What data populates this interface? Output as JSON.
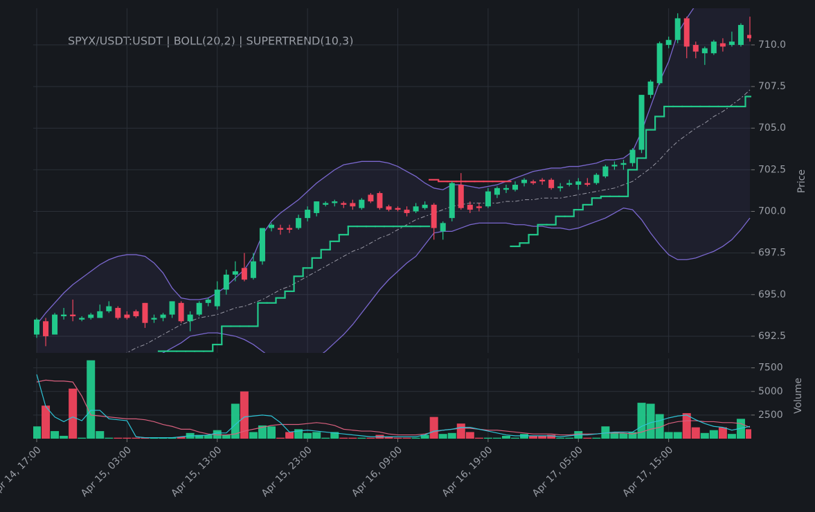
{
  "chart_data": {
    "type": "candlestick",
    "title": "SPYX/USDT:USDT | BOLL(20,2) | SUPERTREND(10,3)",
    "y_label": "Price",
    "volume_label": "Volume",
    "categories": [
      "Apr 14, 17:00",
      null,
      null,
      null,
      null,
      null,
      null,
      null,
      null,
      null,
      "Apr 15, 03:00",
      null,
      null,
      null,
      null,
      null,
      null,
      null,
      null,
      null,
      "Apr 15, 13:00",
      null,
      null,
      null,
      null,
      null,
      null,
      null,
      null,
      null,
      "Apr 15, 23:00",
      null,
      null,
      null,
      null,
      null,
      null,
      null,
      null,
      null,
      "Apr 16, 09:00",
      null,
      null,
      null,
      null,
      null,
      null,
      null,
      null,
      null,
      "Apr 16, 19:00",
      null,
      null,
      null,
      null,
      null,
      null,
      null,
      null,
      null,
      "Apr 17, 05:00",
      null,
      null,
      null,
      null,
      null,
      null,
      null,
      null,
      null,
      "Apr 17, 15:00",
      null,
      null,
      null,
      null,
      null,
      null,
      null,
      null,
      null
    ],
    "open": [
      692.6,
      693.4,
      692.6,
      693.7,
      693.8,
      693.5,
      693.6,
      693.6,
      694.0,
      694.2,
      693.8,
      694.0,
      694.5,
      693.5,
      693.6,
      693.8,
      694.5,
      693.4,
      693.8,
      694.5,
      694.3,
      695.3,
      696.2,
      696.6,
      696.0,
      697.0,
      699.0,
      699.0,
      699.0,
      699.0,
      699.6,
      699.9,
      700.4,
      700.5,
      700.5,
      700.5,
      700.2,
      701.0,
      701.1,
      700.3,
      700.2,
      700.1,
      700.0,
      700.2,
      700.4,
      698.8,
      699.6,
      701.6,
      700.4,
      700.3,
      700.3,
      701.0,
      701.3,
      701.3,
      701.7,
      701.8,
      701.9,
      701.9,
      701.4,
      701.6,
      701.6,
      701.7,
      701.7,
      702.1,
      702.7,
      702.8,
      702.9,
      703.7,
      707.0,
      707.7,
      710.0,
      710.3,
      711.6,
      710.0,
      709.5,
      709.5,
      710.1,
      710.0,
      710.0,
      710.6
    ],
    "high": [
      693.6,
      693.6,
      693.9,
      694.2,
      694.7,
      693.7,
      693.9,
      694.4,
      694.6,
      694.3,
      694.0,
      694.1,
      694.5,
      693.8,
      693.9,
      694.6,
      694.6,
      694.0,
      694.6,
      694.8,
      695.8,
      696.5,
      697.0,
      697.5,
      697.5,
      699.0,
      699.3,
      699.2,
      699.2,
      699.8,
      700.3,
      700.6,
      700.6,
      700.7,
      700.6,
      700.7,
      700.8,
      701.1,
      701.2,
      700.4,
      700.3,
      700.3,
      700.5,
      700.6,
      700.5,
      699.4,
      701.8,
      702.3,
      700.6,
      700.5,
      701.4,
      701.5,
      701.6,
      701.8,
      702.0,
      701.9,
      702.0,
      702.0,
      701.7,
      701.9,
      702.0,
      702.0,
      702.3,
      702.8,
      703.0,
      703.1,
      703.8,
      707.0,
      707.9,
      710.2,
      710.5,
      711.9,
      711.7,
      710.2,
      709.9,
      710.3,
      710.4,
      710.8,
      711.3,
      711.7
    ],
    "low": [
      692.4,
      691.9,
      692.6,
      693.5,
      693.4,
      693.4,
      693.5,
      693.6,
      693.9,
      693.5,
      693.5,
      693.6,
      693.0,
      693.3,
      693.4,
      693.6,
      693.3,
      692.8,
      693.7,
      694.3,
      694.1,
      695.0,
      695.8,
      695.8,
      695.9,
      696.8,
      698.8,
      698.6,
      698.7,
      698.9,
      699.4,
      699.7,
      700.3,
      700.3,
      700.2,
      700.1,
      700.1,
      700.5,
      700.1,
      700.0,
      700.0,
      699.7,
      699.9,
      700.1,
      698.3,
      698.3,
      699.4,
      700.1,
      699.9,
      700.0,
      700.2,
      700.8,
      701.1,
      701.2,
      701.5,
      701.6,
      701.6,
      701.3,
      701.2,
      701.5,
      701.3,
      701.5,
      701.6,
      702.0,
      702.5,
      702.5,
      702.7,
      703.5,
      706.8,
      707.6,
      709.8,
      710.1,
      709.2,
      709.2,
      708.8,
      709.4,
      709.6,
      709.9,
      709.9,
      710.2
    ],
    "close": [
      693.5,
      692.5,
      693.8,
      693.8,
      693.7,
      693.6,
      693.8,
      694.0,
      694.3,
      693.6,
      693.6,
      693.7,
      693.3,
      693.6,
      693.8,
      694.6,
      693.4,
      693.8,
      694.5,
      694.7,
      695.3,
      696.2,
      696.4,
      695.9,
      697.0,
      699.0,
      699.2,
      698.9,
      698.9,
      699.6,
      700.1,
      700.6,
      700.5,
      700.6,
      700.4,
      700.3,
      700.7,
      700.6,
      700.2,
      700.1,
      700.1,
      699.9,
      700.3,
      700.4,
      699.0,
      699.3,
      701.7,
      700.2,
      700.1,
      700.2,
      701.2,
      701.4,
      701.4,
      701.6,
      701.9,
      701.7,
      701.8,
      701.4,
      701.5,
      701.7,
      701.8,
      701.6,
      702.2,
      702.7,
      702.8,
      702.9,
      703.7,
      707.0,
      707.8,
      710.1,
      710.3,
      711.6,
      709.9,
      709.6,
      709.8,
      710.2,
      709.9,
      710.2,
      711.2,
      710.4
    ],
    "volume": [
      1300,
      3500,
      800,
      300,
      5300,
      100,
      8300,
      800,
      100,
      100,
      100,
      100,
      100,
      100,
      100,
      100,
      200,
      600,
      400,
      400,
      900,
      400,
      3700,
      5000,
      700,
      1400,
      1300,
      100,
      700,
      1000,
      600,
      700,
      100,
      700,
      100,
      100,
      100,
      100,
      400,
      200,
      100,
      100,
      100,
      400,
      2300,
      500,
      600,
      1600,
      700,
      100,
      100,
      100,
      300,
      100,
      500,
      300,
      300,
      400,
      100,
      100,
      800,
      100,
      100,
      1300,
      700,
      600,
      700,
      3800,
      3700,
      2600,
      700,
      700,
      2700,
      1200,
      600,
      900,
      1200,
      500,
      2100,
      1000
    ],
    "up_color": "#22c98b",
    "down_color": "#f0455d",
    "bollinger": {
      "color": "#7b68d0",
      "mid_color": "#9a9aa6",
      "upper": [
        693.2,
        693.9,
        694.5,
        695.1,
        695.6,
        696.0,
        696.4,
        696.8,
        697.1,
        697.3,
        697.4,
        697.4,
        697.3,
        696.9,
        696.3,
        695.4,
        694.8,
        694.7,
        694.7,
        694.8,
        695.1,
        695.5,
        696.0,
        696.5,
        697.3,
        698.6,
        699.4,
        699.9,
        700.3,
        700.7,
        701.2,
        701.7,
        702.1,
        702.5,
        702.8,
        702.9,
        703.0,
        703.0,
        703.0,
        702.9,
        702.7,
        702.4,
        702.1,
        701.7,
        701.4,
        701.3,
        701.6,
        701.6,
        701.5,
        701.4,
        701.5,
        701.6,
        701.8,
        702.0,
        702.2,
        702.4,
        702.5,
        702.6,
        702.6,
        702.7,
        702.7,
        702.8,
        702.9,
        703.1,
        703.1,
        703.2,
        703.6,
        704.8,
        706.3,
        707.8,
        709.0,
        710.7,
        711.6,
        712.4,
        713.0,
        713.5,
        713.8,
        714.0,
        714.2,
        714.4
      ],
      "mid": [
        691.0,
        690.9,
        690.9,
        690.9,
        691.0,
        691.0,
        691.0,
        691.1,
        691.2,
        691.3,
        691.5,
        691.8,
        692.0,
        692.3,
        692.6,
        692.9,
        693.2,
        693.4,
        693.6,
        693.7,
        693.8,
        694.0,
        694.2,
        694.3,
        694.5,
        694.7,
        695.0,
        695.3,
        695.5,
        695.8,
        696.1,
        696.4,
        696.7,
        697.0,
        697.3,
        697.6,
        697.8,
        698.1,
        698.4,
        698.6,
        698.9,
        699.2,
        699.5,
        699.7,
        699.9,
        700.1,
        700.3,
        700.4,
        700.5,
        700.5,
        700.5,
        700.5,
        700.6,
        700.6,
        700.7,
        700.7,
        700.8,
        700.8,
        700.8,
        700.9,
        701.0,
        701.1,
        701.2,
        701.3,
        701.4,
        701.6,
        701.8,
        702.2,
        702.6,
        703.1,
        703.7,
        704.2,
        704.6,
        705.0,
        705.3,
        705.7,
        706.0,
        706.4,
        706.8,
        707.3
      ],
      "lower": [
        690.5,
        690.0,
        689.6,
        689.3,
        689.1,
        689.0,
        689.0,
        689.1,
        689.3,
        689.6,
        689.9,
        690.3,
        690.8,
        691.2,
        691.5,
        691.8,
        692.1,
        692.5,
        692.6,
        692.7,
        692.7,
        692.6,
        692.5,
        692.3,
        692.0,
        691.6,
        691.2,
        691.0,
        690.9,
        690.9,
        691.0,
        691.2,
        691.6,
        692.1,
        692.6,
        693.2,
        693.9,
        694.6,
        695.3,
        695.9,
        696.4,
        696.9,
        697.3,
        698.0,
        698.7,
        698.8,
        698.8,
        699.0,
        699.2,
        699.3,
        699.3,
        699.3,
        699.3,
        699.2,
        699.2,
        699.1,
        699.1,
        699.0,
        699.0,
        698.9,
        699.0,
        699.2,
        699.4,
        699.6,
        699.9,
        700.2,
        700.1,
        699.5,
        698.7,
        698.0,
        697.4,
        697.1,
        697.1,
        697.2,
        697.4,
        697.6,
        697.9,
        698.3,
        698.9,
        699.6
      ]
    },
    "supertrend": [
      {
        "color": "#22c98b",
        "values": [
          null,
          null,
          null,
          null,
          null,
          null,
          null,
          null,
          null,
          null,
          null,
          null,
          null,
          null,
          691.6,
          691.6,
          691.6,
          691.6,
          691.6,
          691.6,
          692.0,
          693.1,
          693.1,
          693.1,
          693.1,
          694.5,
          694.5,
          694.8,
          695.2,
          696.1,
          696.6,
          697.2,
          697.7,
          698.2,
          698.6,
          699.1,
          699.1,
          699.1,
          699.1,
          699.1,
          699.1,
          699.1,
          699.1,
          699.1,
          null,
          null,
          null,
          null,
          null,
          null,
          null,
          null,
          null,
          697.9,
          698.1,
          698.6,
          699.2,
          699.2,
          699.7,
          699.7,
          700.1,
          700.4,
          700.8,
          700.9,
          700.9,
          700.9,
          702.5,
          703.2,
          704.9,
          705.7,
          706.3,
          706.3,
          706.3,
          706.3,
          706.3,
          706.3,
          706.3,
          706.3,
          706.3,
          706.9
        ]
      },
      {
        "color": "#f0455d",
        "values": [
          null,
          null,
          null,
          null,
          null,
          null,
          null,
          null,
          null,
          null,
          null,
          null,
          null,
          null,
          null,
          null,
          null,
          null,
          null,
          null,
          null,
          null,
          null,
          null,
          null,
          null,
          null,
          null,
          null,
          null,
          null,
          null,
          null,
          null,
          null,
          null,
          null,
          null,
          null,
          null,
          null,
          null,
          null,
          null,
          701.9,
          701.8,
          701.8,
          701.8,
          701.8,
          701.8,
          701.8,
          701.8,
          701.8,
          null,
          null,
          null,
          null,
          null,
          null,
          null,
          null,
          null,
          null,
          null,
          null,
          null,
          null,
          null,
          null,
          null,
          null,
          null,
          null,
          null,
          null,
          null,
          null,
          null,
          null,
          null
        ]
      }
    ],
    "volume_ma": [
      {
        "color": "#d9607e",
        "values": [
          6000,
          6200,
          6100,
          6100,
          6000,
          4500,
          2500,
          2400,
          2300,
          2200,
          2100,
          2100,
          2000,
          1800,
          1500,
          1300,
          1000,
          1000,
          700,
          500,
          400,
          400,
          500,
          800,
          1000,
          1200,
          1400,
          1500,
          1500,
          1500,
          1600,
          1700,
          1600,
          1400,
          1000,
          900,
          800,
          800,
          700,
          500,
          400,
          400,
          400,
          500,
          700,
          900,
          1000,
          1100,
          1100,
          1000,
          900,
          900,
          800,
          700,
          600,
          500,
          500,
          500,
          400,
          400,
          500,
          500,
          500,
          600,
          600,
          600,
          500,
          700,
          1000,
          1200,
          1600,
          1800,
          1900,
          1900,
          1800,
          1800,
          1700,
          1700,
          1600,
          1200
        ]
      },
      {
        "color": "#2ec4d6",
        "values": [
          6800,
          3400,
          2300,
          1800,
          2300,
          1900,
          3000,
          3000,
          2100,
          2000,
          1900,
          200,
          100,
          100,
          100,
          100,
          200,
          300,
          300,
          400,
          600,
          600,
          1500,
          2300,
          2400,
          2500,
          2400,
          1700,
          700,
          800,
          900,
          800,
          700,
          600,
          500,
          400,
          300,
          200,
          200,
          200,
          200,
          200,
          200,
          400,
          800,
          900,
          1000,
          1200,
          1200,
          1000,
          800,
          600,
          400,
          300,
          300,
          300,
          300,
          300,
          200,
          300,
          400,
          400,
          500,
          600,
          700,
          700,
          700,
          1300,
          1700,
          1900,
          2200,
          2400,
          2500,
          2000,
          1600,
          1300,
          1200,
          900,
          1100,
          1300
        ]
      }
    ],
    "ylim": [
      691.5,
      712.2
    ],
    "yticks": [
      692.5,
      {
        "value": 695,
        "label": "695.0"
      },
      697.5,
      {
        "value": 700,
        "label": "700.0"
      },
      702.5,
      {
        "value": 705,
        "label": "705.0"
      },
      707.5,
      {
        "value": 710,
        "label": "710.0"
      }
    ],
    "volume_ylim": [
      0,
      8500
    ],
    "volume_yticks": [
      2500,
      5000,
      7500
    ],
    "grid": true
  }
}
